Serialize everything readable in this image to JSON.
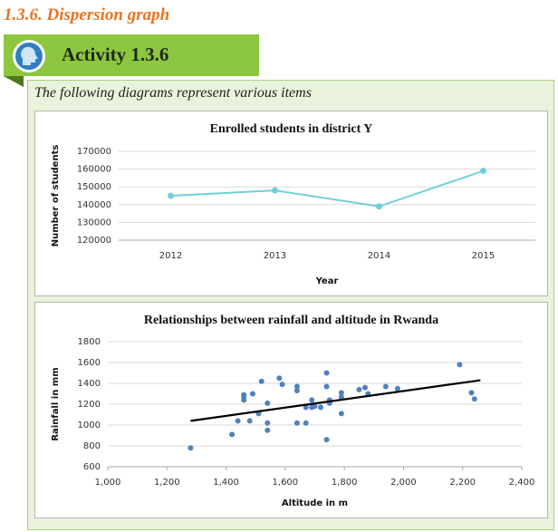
{
  "heading": "1.3.6. Dispersion graph",
  "activity": "Activity 1.3.6",
  "intro": "The following diagrams represent various items",
  "chart_data": [
    {
      "type": "line",
      "title": "Enrolled students in district Y",
      "y_label": "Number of students",
      "x_label": "Year",
      "categories": [
        "2012",
        "2013",
        "2014",
        "2015"
      ],
      "values": [
        145000,
        148000,
        139000,
        159000
      ],
      "color": "#72cfd9",
      "ylim": [
        120000,
        170000
      ],
      "yticks": [
        120000,
        130000,
        140000,
        150000,
        160000,
        170000
      ],
      "grid": true
    },
    {
      "type": "scatter",
      "title": "Relationships between rainfall and altitude in Rwanda",
      "y_label": "Rainfall in mm",
      "x_label": "Altitude in m",
      "x": [
        1280,
        1420,
        1440,
        1460,
        1460,
        1460,
        1480,
        1490,
        1510,
        1520,
        1540,
        1540,
        1540,
        1580,
        1590,
        1640,
        1640,
        1640,
        1670,
        1670,
        1690,
        1690,
        1700,
        1720,
        1740,
        1740,
        1750,
        1750,
        1740,
        1790,
        1790,
        1790,
        1850,
        1870,
        1880,
        1940,
        1980,
        2190,
        2230,
        2240
      ],
      "values": [
        780,
        910,
        1040,
        1240,
        1270,
        1290,
        1040,
        1300,
        1110,
        1420,
        1210,
        1020,
        950,
        1450,
        1390,
        1370,
        1330,
        1020,
        1170,
        1020,
        1240,
        1170,
        1180,
        1170,
        1500,
        1370,
        1240,
        1210,
        860,
        1310,
        1270,
        1110,
        1340,
        1360,
        1300,
        1370,
        1350,
        1580,
        1310,
        1250
      ],
      "color": "#4f81bd",
      "trendline": {
        "x": [
          1280,
          2260
        ],
        "values": [
          1040,
          1430
        ],
        "color": "#000000"
      },
      "xlim": [
        1000,
        2400
      ],
      "xticks": [
        {
          "value": 1000,
          "label": "1,000"
        },
        {
          "value": 1200,
          "label": "1,200"
        },
        {
          "value": 1400,
          "label": "1,400"
        },
        {
          "value": 1600,
          "label": "1,600"
        },
        {
          "value": 1800,
          "label": "1,800"
        },
        {
          "value": 2000,
          "label": "2,000"
        },
        {
          "value": 2200,
          "label": "2,200"
        },
        {
          "value": 2400,
          "label": "2,400"
        }
      ],
      "ylim": [
        600,
        1800
      ],
      "yticks": [
        600,
        800,
        1000,
        1200,
        1400,
        1600,
        1800
      ],
      "grid": true
    }
  ]
}
